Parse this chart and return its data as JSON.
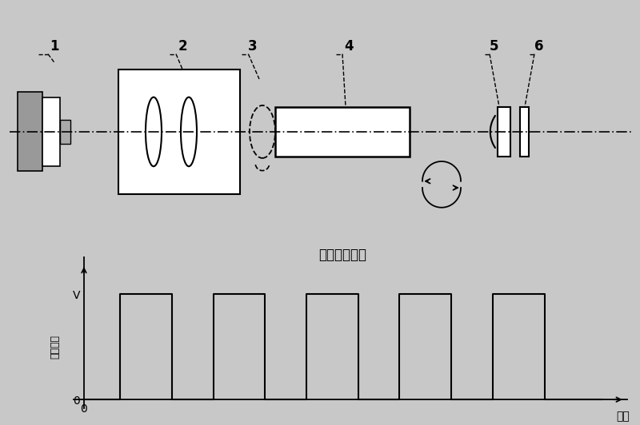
{
  "bg_color": "#c8c8c8",
  "plot_bg": "#ffffff",
  "line_color": "#000000",
  "title": "电信号波形图",
  "ylabel": "电信号幅",
  "xlabel_time": "时间",
  "xlabel_zero": "0",
  "ytick_V": "V",
  "ytick_0": "0"
}
